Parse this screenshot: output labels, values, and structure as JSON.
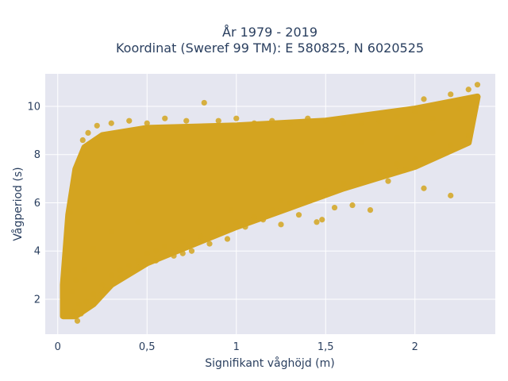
{
  "chart_data": {
    "type": "scatter",
    "title_lines": [
      "År 1979 - 2019",
      "Koordinat (Sweref 99 TM): E 580825, N 6020525"
    ],
    "xlabel": "Signifikant våghöjd (m)",
    "ylabel": "Vågperiod (s)",
    "xlim": [
      -0.07,
      2.45
    ],
    "ylim": [
      0.55,
      11.35
    ],
    "x_ticks": [
      0,
      0.5,
      1,
      1.5,
      2
    ],
    "x_tick_labels": [
      "0",
      "0,5",
      "1",
      "1,5",
      "2"
    ],
    "y_ticks": [
      2,
      4,
      6,
      8,
      10
    ],
    "y_tick_labels": [
      "2",
      "4",
      "6",
      "8",
      "10"
    ],
    "grid": true,
    "legend": "none",
    "colors": {
      "marker": "#d4a420",
      "plot_background": "#e5e6f0",
      "grid": "#ffffff",
      "text": "#2a3f5f"
    },
    "envelope": {
      "description_values_h_m_vs_period_s": true,
      "upper": [
        [
          0.03,
          2.6
        ],
        [
          0.06,
          5.5
        ],
        [
          0.1,
          7.4
        ],
        [
          0.15,
          8.3
        ],
        [
          0.25,
          8.8
        ],
        [
          0.5,
          9.1
        ],
        [
          1.0,
          9.2
        ],
        [
          1.5,
          9.4
        ],
        [
          2.0,
          9.9
        ],
        [
          2.35,
          10.4
        ]
      ],
      "lower": [
        [
          0.03,
          1.3
        ],
        [
          0.1,
          1.3
        ],
        [
          0.2,
          1.8
        ],
        [
          0.3,
          2.6
        ],
        [
          0.5,
          3.5
        ],
        [
          0.8,
          4.4
        ],
        [
          1.0,
          5.0
        ],
        [
          1.3,
          5.8
        ],
        [
          1.6,
          6.6
        ],
        [
          2.0,
          7.5
        ],
        [
          2.3,
          8.5
        ]
      ]
    },
    "points": [
      [
        0.08,
        1.3
      ],
      [
        0.11,
        1.1
      ],
      [
        0.09,
        1.5
      ],
      [
        0.12,
        1.8
      ],
      [
        0.08,
        2.3
      ],
      [
        0.1,
        2.8
      ],
      [
        0.06,
        3.2
      ],
      [
        0.13,
        1.4
      ],
      [
        0.16,
        1.9
      ],
      [
        0.2,
        2.2
      ],
      [
        0.25,
        2.6
      ],
      [
        0.3,
        3.0
      ],
      [
        0.35,
        3.2
      ],
      [
        0.4,
        3.4
      ],
      [
        0.45,
        3.6
      ],
      [
        0.5,
        3.9
      ],
      [
        0.55,
        4.0
      ],
      [
        0.6,
        4.2
      ],
      [
        0.7,
        4.4
      ],
      [
        0.8,
        4.6
      ],
      [
        0.9,
        4.9
      ],
      [
        1.0,
        5.2
      ],
      [
        1.1,
        5.4
      ],
      [
        1.2,
        5.7
      ],
      [
        1.3,
        6.0
      ],
      [
        1.4,
        6.2
      ],
      [
        1.5,
        6.5
      ],
      [
        1.6,
        6.8
      ],
      [
        1.7,
        7.0
      ],
      [
        1.8,
        7.3
      ],
      [
        1.9,
        7.6
      ],
      [
        2.0,
        7.8
      ],
      [
        2.1,
        8.1
      ],
      [
        2.2,
        8.4
      ],
      [
        2.3,
        8.8
      ],
      [
        2.33,
        9.6
      ],
      [
        2.25,
        9.9
      ],
      [
        2.15,
        10.0
      ],
      [
        2.05,
        10.3
      ],
      [
        2.35,
        10.9
      ],
      [
        2.3,
        10.7
      ],
      [
        2.2,
        10.5
      ],
      [
        2.1,
        9.5
      ],
      [
        2.0,
        9.8
      ],
      [
        1.9,
        9.6
      ],
      [
        1.8,
        9.4
      ],
      [
        1.7,
        9.3
      ],
      [
        1.6,
        9.3
      ],
      [
        1.5,
        9.4
      ],
      [
        1.4,
        9.5
      ],
      [
        1.3,
        9.3
      ],
      [
        1.2,
        9.4
      ],
      [
        1.1,
        9.3
      ],
      [
        1.0,
        9.5
      ],
      [
        0.9,
        9.4
      ],
      [
        0.82,
        10.15
      ],
      [
        0.72,
        9.4
      ],
      [
        0.6,
        9.5
      ],
      [
        0.5,
        9.3
      ],
      [
        0.4,
        9.4
      ],
      [
        0.3,
        9.3
      ],
      [
        0.22,
        9.2
      ],
      [
        0.17,
        8.9
      ],
      [
        0.14,
        8.6
      ],
      [
        0.11,
        7.4
      ],
      [
        0.07,
        5.6
      ],
      [
        0.05,
        3.8
      ],
      [
        0.04,
        2.9
      ],
      [
        2.2,
        6.3
      ],
      [
        2.05,
        6.6
      ],
      [
        1.75,
        5.7
      ],
      [
        1.65,
        5.9
      ],
      [
        1.45,
        5.2
      ],
      [
        1.35,
        5.5
      ],
      [
        1.25,
        5.1
      ],
      [
        1.15,
        5.3
      ],
      [
        0.95,
        4.5
      ],
      [
        0.85,
        4.3
      ],
      [
        0.75,
        4.0
      ],
      [
        0.65,
        3.8
      ],
      [
        0.55,
        3.6
      ],
      [
        0.45,
        3.3
      ],
      [
        0.35,
        2.9
      ],
      [
        0.27,
        2.4
      ],
      [
        0.2,
        1.8
      ],
      [
        1.85,
        6.9
      ],
      [
        1.95,
        7.4
      ],
      [
        1.55,
        5.8
      ],
      [
        1.05,
        5.0
      ],
      [
        0.7,
        3.9
      ],
      [
        0.97,
        5.7
      ],
      [
        1.25,
        6.1
      ],
      [
        1.48,
        5.3
      ],
      [
        0.45,
        5.2
      ],
      [
        0.3,
        4.8
      ],
      [
        0.2,
        4.1
      ],
      [
        0.15,
        3.2
      ],
      [
        1.7,
        8.5
      ],
      [
        1.9,
        8.7
      ],
      [
        2.1,
        8.9
      ]
    ]
  }
}
